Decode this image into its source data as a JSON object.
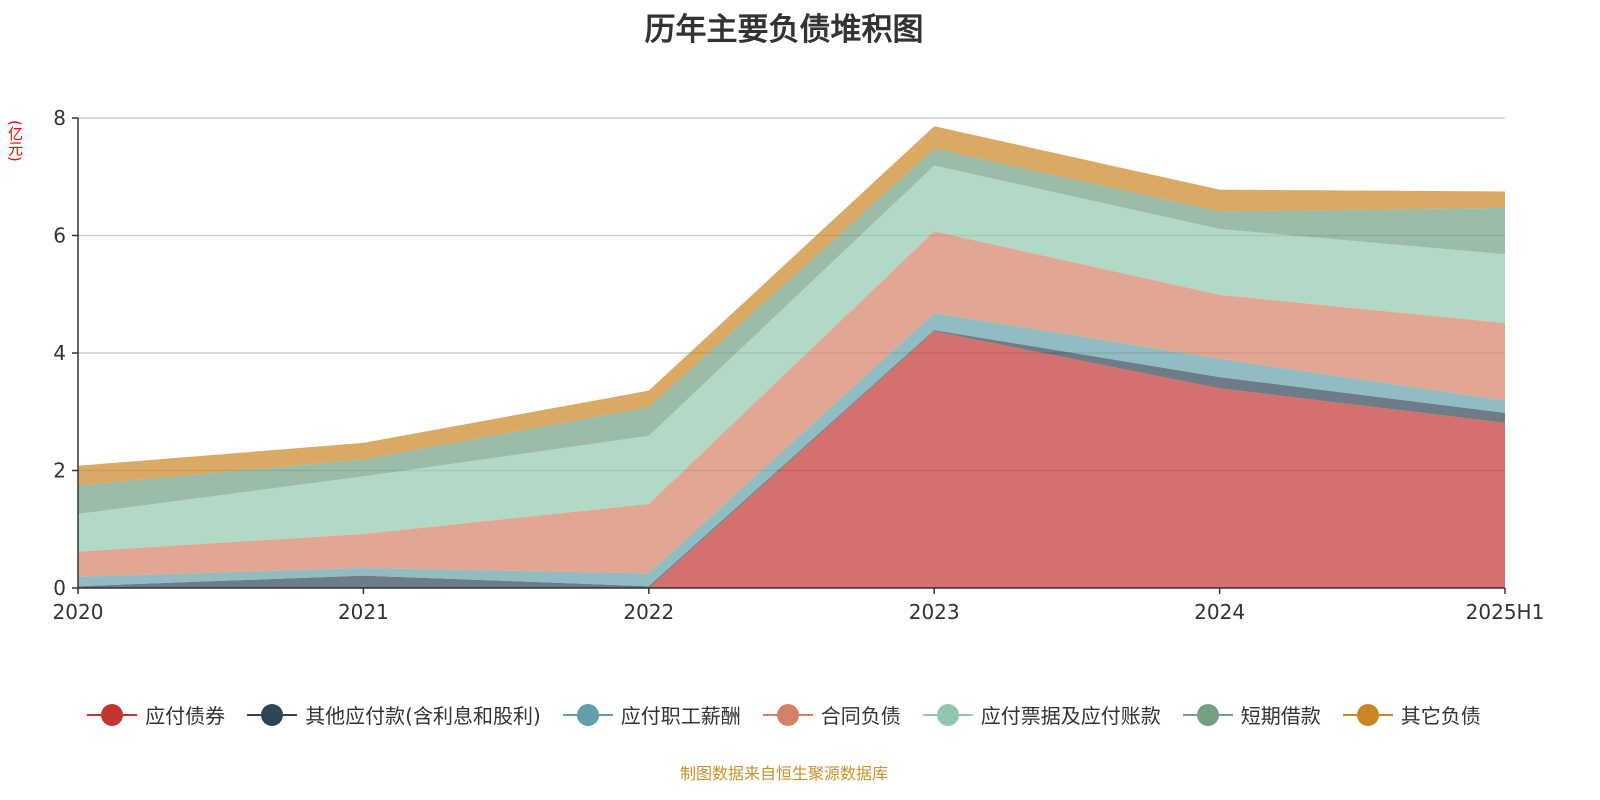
{
  "chart_data": {
    "type": "area",
    "stacked": true,
    "title": "历年主要负债堆积图",
    "ylabel": "(亿元)",
    "xlabel": "",
    "ylim": [
      0,
      8
    ],
    "yticks": [
      0,
      2,
      4,
      6,
      8
    ],
    "grid": true,
    "legend_position": "bottom",
    "categories": [
      "2020",
      "2021",
      "2022",
      "2023",
      "2024",
      "2025H1"
    ],
    "series": [
      {
        "name": "应付债券",
        "color": "#c23531",
        "values": [
          0,
          0,
          0,
          4.37,
          3.4,
          2.81
        ]
      },
      {
        "name": "其他应付款(含利息和股利)",
        "color": "#2f4554",
        "values": [
          0.03,
          0.21,
          0.03,
          0.02,
          0.19,
          0.17
        ]
      },
      {
        "name": "应付职工薪酬",
        "color": "#61a0a8",
        "values": [
          0.16,
          0.13,
          0.22,
          0.29,
          0.31,
          0.21
        ]
      },
      {
        "name": "合同负债",
        "color": "#d48265",
        "values": [
          0.43,
          0.58,
          1.18,
          1.39,
          1.09,
          1.32
        ]
      },
      {
        "name": "应付票据及应付账款",
        "color": "#91c7ae",
        "values": [
          0.64,
          0.98,
          1.16,
          1.12,
          1.12,
          1.17
        ]
      },
      {
        "name": "短期借款",
        "color": "#749f83",
        "values": [
          0.49,
          0.29,
          0.49,
          0.29,
          0.3,
          0.79
        ]
      },
      {
        "name": "其它负债",
        "color": "#ca8622",
        "values": [
          0.33,
          0.28,
          0.28,
          0.38,
          0.37,
          0.28
        ]
      }
    ]
  },
  "footer": "制图数据来自恒生聚源数据库"
}
